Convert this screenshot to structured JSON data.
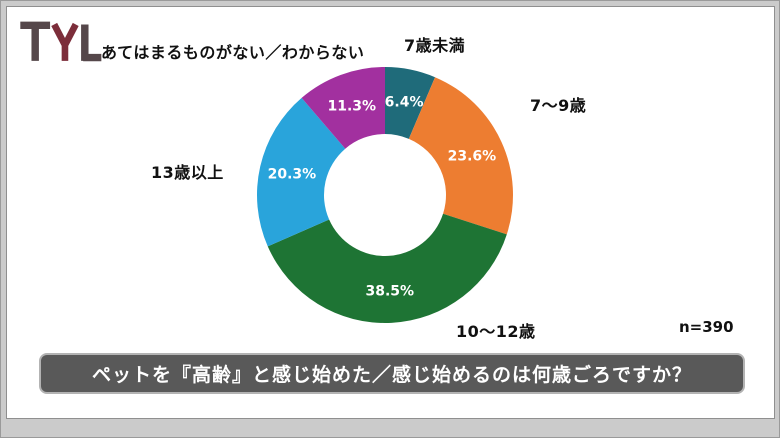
{
  "brand": {
    "logo_text": "TYL"
  },
  "chart_data": {
    "type": "pie",
    "subtype": "donut",
    "title": "ペットを『高齢』と感じ始めた／感じ始めるのは何歳ごろですか？",
    "sample_label": "n=390",
    "direction": "clockwise",
    "start_angle_deg": 0,
    "inner_radius_ratio": 0.48,
    "legend": "none",
    "segments": [
      {
        "label": "7歳未満",
        "value": 6.4,
        "percent_label": "6.4%",
        "color": "#1F6B7A"
      },
      {
        "label": "7〜9歳",
        "value": 23.6,
        "percent_label": "23.6%",
        "color": "#ED7D31"
      },
      {
        "label": "10〜12歳",
        "value": 38.5,
        "percent_label": "38.5%",
        "color": "#1E7434"
      },
      {
        "label": "13歳以上",
        "value": 20.3,
        "percent_label": "20.3%",
        "color": "#29A4DB"
      },
      {
        "label": "あてはまるものがない／わからない",
        "value": 11.3,
        "percent_label": "11.3%",
        "color": "#A2309F"
      }
    ]
  },
  "banner": {
    "bg_color": "#595959",
    "text_color": "#FFFFFF"
  }
}
